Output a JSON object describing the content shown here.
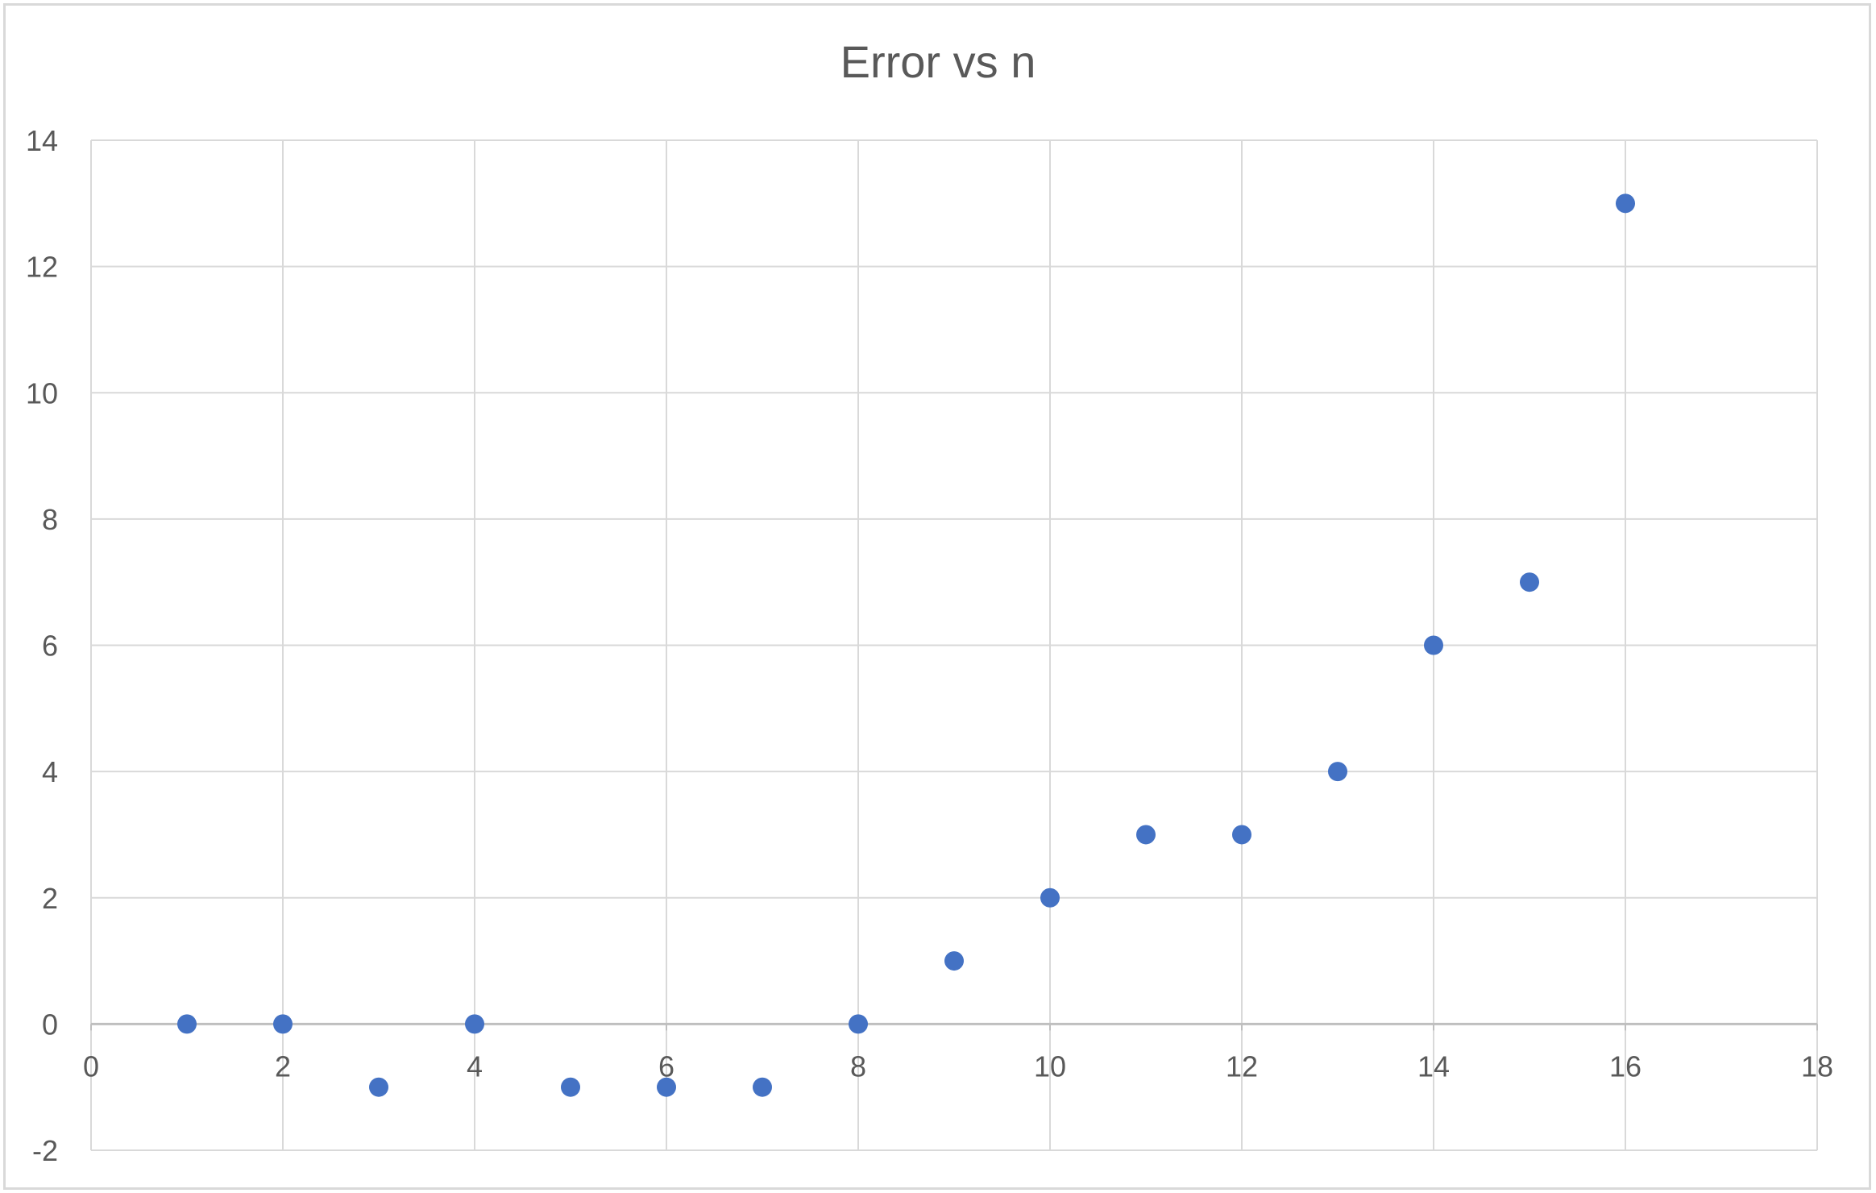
{
  "chart_data": {
    "type": "scatter",
    "title": "Error vs n",
    "xlabel": "",
    "ylabel": "",
    "xlim": [
      0,
      18
    ],
    "ylim": [
      -2,
      14
    ],
    "x_ticks": [
      "0",
      "2",
      "4",
      "6",
      "8",
      "10",
      "12",
      "14",
      "16",
      "18"
    ],
    "y_ticks": [
      "-2",
      "0",
      "2",
      "4",
      "6",
      "8",
      "10",
      "12",
      "14"
    ],
    "grid": true,
    "legend": "none",
    "marker_color": "#4472C4",
    "series": [
      {
        "x": [
          1,
          2,
          3,
          4,
          5,
          6,
          7,
          8,
          9,
          10,
          11,
          12,
          13,
          14,
          15,
          16
        ],
        "y": [
          0,
          0,
          -1,
          0,
          -1,
          -1,
          -1,
          0,
          1,
          2,
          3,
          3,
          4,
          6,
          7,
          13
        ]
      }
    ]
  }
}
